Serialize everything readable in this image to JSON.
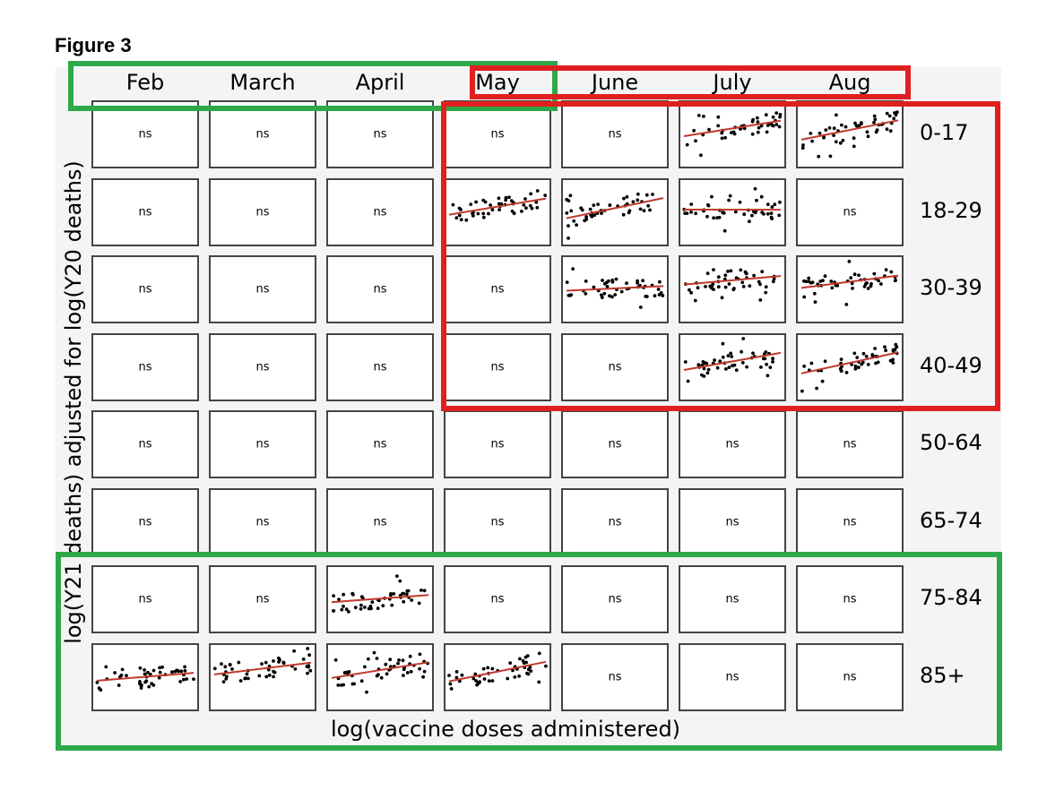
{
  "figure": {
    "title": "Figure 3"
  },
  "chart_data": {
    "type": "scatter",
    "title": "",
    "xlabel": "log(vaccine doses administered)",
    "ylabel": "log(Y21 deaths) adjusted for log(Y20 deaths)",
    "columns": [
      "Feb",
      "March",
      "April",
      "May",
      "June",
      "July",
      "Aug"
    ],
    "rows": [
      "0-17",
      "18-29",
      "30-39",
      "40-49",
      "50-64",
      "65-74",
      "75-84",
      "85+"
    ],
    "ns_label": "ns",
    "cells": [
      [
        "ns",
        "ns",
        "ns",
        "ns",
        "ns",
        "scatter",
        "scatter"
      ],
      [
        "ns",
        "ns",
        "ns",
        "scatter",
        "scatter",
        "scatter",
        "ns"
      ],
      [
        "ns",
        "ns",
        "ns",
        "ns",
        "scatter",
        "scatter",
        "scatter"
      ],
      [
        "ns",
        "ns",
        "ns",
        "ns",
        "ns",
        "scatter",
        "scatter"
      ],
      [
        "ns",
        "ns",
        "ns",
        "ns",
        "ns",
        "ns",
        "ns"
      ],
      [
        "ns",
        "ns",
        "ns",
        "ns",
        "ns",
        "ns",
        "ns"
      ],
      [
        "ns",
        "ns",
        "scatter",
        "ns",
        "ns",
        "ns",
        "ns"
      ],
      [
        "scatter",
        "scatter",
        "scatter",
        "scatter",
        "ns",
        "ns",
        "ns"
      ]
    ],
    "grid": false,
    "legend": "none",
    "colors": {
      "points": "#000000",
      "fit_line": "#c0392b",
      "highlight_red": "#e02020",
      "highlight_green": "#2ea84a"
    }
  }
}
